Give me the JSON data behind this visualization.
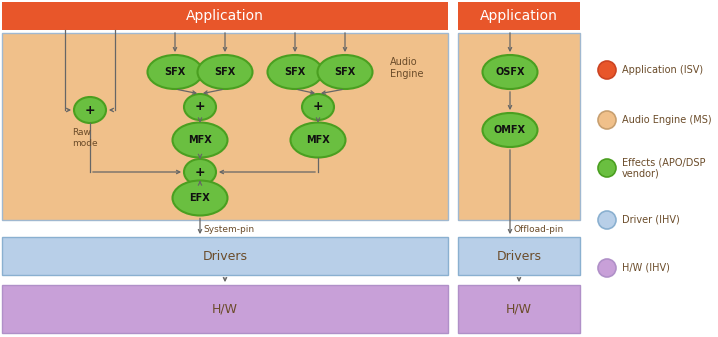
{
  "fig_width": 7.18,
  "fig_height": 3.37,
  "dpi": 100,
  "bg_color": "#ffffff",
  "app_color": "#e8562a",
  "audio_engine_color": "#f0c08a",
  "audio_engine_border": "#a0b8d0",
  "driver_color": "#b8cfe8",
  "driver_border": "#8ab0d0",
  "hw_color": "#c8a0d8",
  "hw_border": "#b090c8",
  "green_fill": "#6abf40",
  "green_border": "#4a9f20",
  "text_color_dark": "#6b4c2a",
  "text_color_white": "#ffffff",
  "legend_items": [
    {
      "fc": "#e8562a",
      "ec": "#cc4422",
      "label": "Application (ISV)"
    },
    {
      "fc": "#f0c08a",
      "ec": "#c8a070",
      "label": "Audio Engine (MS)"
    },
    {
      "fc": "#6abf40",
      "ec": "#4a9f20",
      "label": "Effects (APO/DSP\nvendor)"
    },
    {
      "fc": "#b8cfe8",
      "ec": "#8ab0d0",
      "label": "Driver (IHV)"
    },
    {
      "fc": "#c8a0d8",
      "ec": "#b090c8",
      "label": "H/W (IHV)"
    }
  ]
}
